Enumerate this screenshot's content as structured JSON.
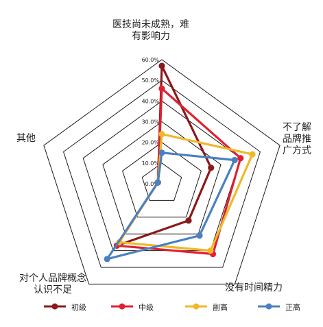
{
  "chart_data": {
    "type": "radar",
    "axes": [
      "医技尚未成熟，难\n有影响力",
      "不了解\n品牌推\n广方式",
      "没有时间精力",
      "对个人品牌概念\n认识不足",
      "其他"
    ],
    "rmax": 60,
    "ticks": [
      "0.0%",
      "10.0%",
      "20.0%",
      "30.0%",
      "40.0%",
      "50.0%",
      "60.0%"
    ],
    "series": [
      {
        "name": "初级",
        "color": "#8B1A1A",
        "values": [
          57,
          25,
          22,
          37,
          2
        ]
      },
      {
        "name": "中级",
        "color": "#E02030",
        "values": [
          46,
          40,
          42,
          37,
          2
        ]
      },
      {
        "name": "副高",
        "color": "#F0B828",
        "values": [
          24,
          46,
          40,
          35,
          2
        ]
      },
      {
        "name": "正高",
        "color": "#4A80C0",
        "values": [
          15,
          37,
          31,
          45,
          2
        ]
      }
    ]
  }
}
